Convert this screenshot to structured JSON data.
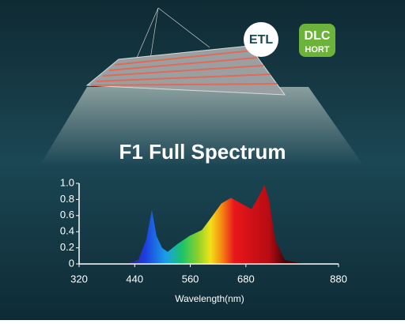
{
  "badges": {
    "etl": "ETL",
    "dlc": "DLC",
    "hort": "HORT"
  },
  "chart_data": {
    "type": "area",
    "title": "F1 Full Spectrum",
    "x_label": "Wavelength(nm)",
    "x": [
      422,
      448,
      465,
      477,
      487,
      499,
      511,
      533,
      559,
      585,
      602,
      627,
      648,
      670,
      692,
      709,
      720,
      730,
      743,
      764,
      798,
      832
    ],
    "values": [
      0,
      0.05,
      0.3,
      0.67,
      0.35,
      0.2,
      0.15,
      0.25,
      0.35,
      0.42,
      0.55,
      0.75,
      0.82,
      0.75,
      0.68,
      0.85,
      0.98,
      0.8,
      0.3,
      0.05,
      0.01,
      0
    ],
    "xlim": [
      320,
      880
    ],
    "xticks": [
      320,
      440,
      560,
      680,
      880
    ],
    "ylim": [
      0,
      1
    ],
    "yticks": [
      0,
      0.2,
      0.4,
      0.6,
      0.8,
      {
        "value": 1,
        "label": "1.0"
      }
    ]
  }
}
